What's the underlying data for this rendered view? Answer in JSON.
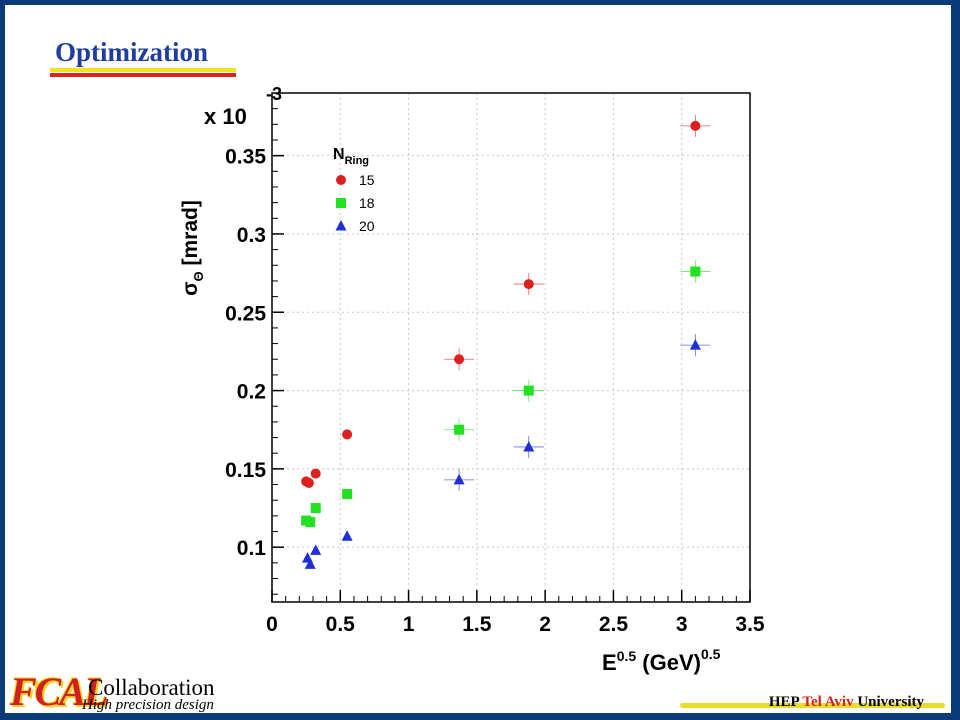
{
  "slide": {
    "title": "Optimization",
    "footer": {
      "logo_text": "FCAL",
      "collaboration": "Collaboration",
      "tagline": "High precision design",
      "university_prefix": "HEP",
      "university_highlight": "Tel Aviv",
      "university_suffix": "University"
    }
  },
  "chart_data": {
    "type": "scatter",
    "title": "",
    "xlabel": "E^0.5 (GeV)^0.5",
    "ylabel": "σΘ [mrad]",
    "y_multiplier": "x 10",
    "y_multiplier_exp": "-3",
    "xlim": [
      0,
      3.5
    ],
    "ylim": [
      0.065,
      0.39
    ],
    "x_ticks": [
      "0",
      "0.5",
      "1",
      "1.5",
      "2",
      "2.5",
      "3",
      "3.5"
    ],
    "x_tick_values": [
      0,
      0.5,
      1,
      1.5,
      2,
      2.5,
      3,
      3.5
    ],
    "y_ticks": [
      "0.1",
      "0.15",
      "0.2",
      "0.25",
      "0.3",
      "0.35"
    ],
    "y_tick_values": [
      0.1,
      0.15,
      0.2,
      0.25,
      0.3,
      0.35
    ],
    "grid": true,
    "legend_title": "N",
    "legend_title_sub": "Ring",
    "legend_position": "top-left",
    "series": [
      {
        "name": "15",
        "marker": "circle",
        "color": "#dd1f1f",
        "x": [
          0.25,
          0.27,
          0.32,
          0.55,
          1.37,
          1.88,
          3.1
        ],
        "y": [
          0.142,
          0.141,
          0.147,
          0.172,
          0.22,
          0.268,
          0.369
        ]
      },
      {
        "name": "18",
        "marker": "square",
        "color": "#22e022",
        "x": [
          0.25,
          0.28,
          0.32,
          0.55,
          1.37,
          1.88,
          3.1
        ],
        "y": [
          0.117,
          0.116,
          0.125,
          0.134,
          0.175,
          0.2,
          0.276
        ]
      },
      {
        "name": "20",
        "marker": "triangle",
        "color": "#1f2fd8",
        "x": [
          0.26,
          0.28,
          0.32,
          0.55,
          1.37,
          1.88,
          3.1
        ],
        "y": [
          0.093,
          0.089,
          0.098,
          0.107,
          0.143,
          0.164,
          0.229
        ]
      }
    ]
  }
}
